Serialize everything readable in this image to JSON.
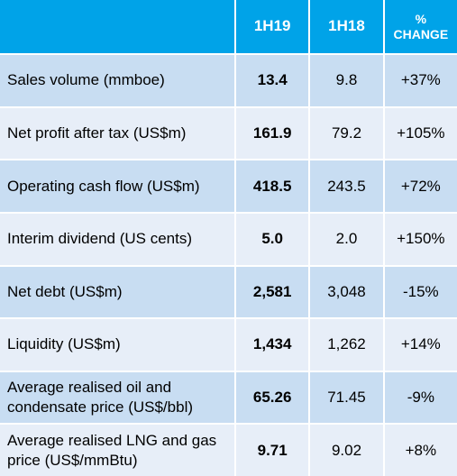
{
  "header": {
    "blank": "",
    "col1": "1H19",
    "col2": "1H18",
    "col3_line1": "%",
    "col3_line2": "CHANGE"
  },
  "rows": [
    {
      "label": "Sales volume (mmboe)",
      "v1": "13.4",
      "v2": "9.8",
      "change": "+37%"
    },
    {
      "label": "Net profit after tax (US$m)",
      "v1": "161.9",
      "v2": "79.2",
      "change": "+105%"
    },
    {
      "label": "Operating cash flow (US$m)",
      "v1": "418.5",
      "v2": "243.5",
      "change": "+72%"
    },
    {
      "label": "Interim dividend (US cents)",
      "v1": "5.0",
      "v2": "2.0",
      "change": "+150%"
    },
    {
      "label": "Net debt (US$m)",
      "v1": "2,581",
      "v2": "3,048",
      "change": "-15%"
    },
    {
      "label": "Liquidity (US$m)",
      "v1": "1,434",
      "v2": "1,262",
      "change": "+14%"
    },
    {
      "label": "Average realised oil and condensate price (US$/bbl)",
      "v1": "65.26",
      "v2": "71.45",
      "change": "-9%"
    },
    {
      "label": "Average realised LNG and gas price (US$/mmBtu)",
      "v1": "9.71",
      "v2": "9.02",
      "change": "+8%"
    }
  ],
  "colors": {
    "header": "#00a3e8",
    "row_dark": "#c8ddf2",
    "row_light": "#e7eef8"
  }
}
